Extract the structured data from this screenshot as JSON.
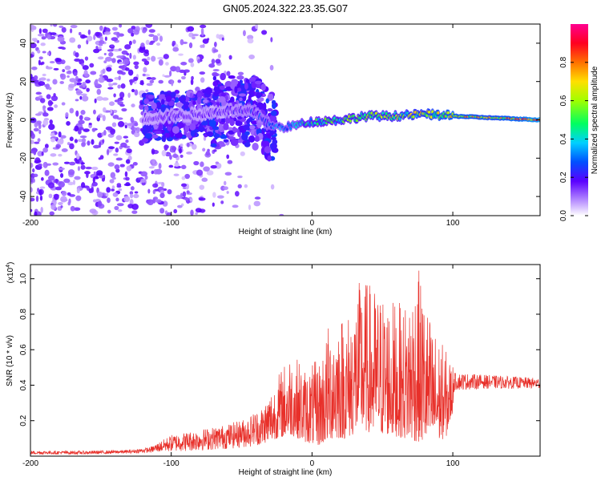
{
  "title": "GN05.2024.322.23.35.G07",
  "colors": {
    "signal": "#e8302a",
    "axis": "#000000"
  },
  "chart_data": [
    {
      "type": "heatmap",
      "title": "GN05.2024.322.23.35.G07",
      "xlabel": "Height of straight line (km)",
      "ylabel": "Frequency (Hz)",
      "xlim": [
        -200,
        162
      ],
      "ylim": [
        -50,
        50
      ],
      "xticks": [
        "-200",
        "-100",
        "0",
        "100"
      ],
      "yticks": [
        "-40",
        "-20",
        "0",
        "20",
        "40"
      ],
      "colorbar": {
        "label": "Normalized spectral amplitude",
        "range": [
          0,
          1
        ],
        "ticks": [
          "0.0",
          "0.2",
          "0.4",
          "0.6",
          "0.8"
        ]
      },
      "ridge": {
        "description_points_x": [
          -120,
          -100,
          -80,
          -60,
          -40,
          -30,
          -20,
          0,
          20,
          40,
          60,
          80,
          100,
          130,
          162
        ],
        "frequency_hz": [
          1,
          2,
          3,
          5,
          4,
          -3,
          -4,
          -1,
          0,
          2,
          2,
          3,
          2,
          1,
          0
        ],
        "amplitude": [
          0.15,
          0.2,
          0.18,
          0.2,
          0.25,
          0.3,
          0.35,
          0.5,
          0.55,
          0.6,
          0.6,
          0.7,
          0.8,
          0.75,
          0.95
        ]
      }
    },
    {
      "type": "line",
      "title": "",
      "xlabel": "Height of straight line (km)",
      "ylabel": "SNR (10 * v/v)",
      "yunit_label": "(x10",
      "yunit_exp": "4",
      "unit_close": ")",
      "xlim": [
        -200,
        162
      ],
      "ylim": [
        0,
        1.08
      ],
      "xticks": [
        "-200",
        "-100",
        "0",
        "100"
      ],
      "yticks": [
        "0.2",
        "0.4",
        "0.6",
        "0.8",
        "1.0"
      ],
      "series": [
        {
          "color": "#e8302a",
          "envelope_x": [
            -200,
            -160,
            -130,
            -115,
            -100,
            -80,
            -60,
            -45,
            -35,
            -25,
            -15,
            -5,
            5,
            15,
            25,
            35,
            45,
            55,
            65,
            75,
            85,
            95,
            100,
            101,
            120,
            140,
            162
          ],
          "envelope_min": [
            0.01,
            0.01,
            0.015,
            0.02,
            0.025,
            0.03,
            0.04,
            0.05,
            0.07,
            0.1,
            0.12,
            0.08,
            0.06,
            0.1,
            0.1,
            0.15,
            0.12,
            0.12,
            0.1,
            0.08,
            0.08,
            0.1,
            0.25,
            0.37,
            0.38,
            0.38,
            0.38
          ],
          "envelope_max": [
            0.03,
            0.03,
            0.035,
            0.05,
            0.12,
            0.15,
            0.18,
            0.22,
            0.3,
            0.45,
            0.6,
            0.5,
            0.55,
            0.84,
            0.8,
            1.02,
            0.95,
            0.9,
            0.85,
            1.08,
            0.75,
            0.6,
            0.52,
            0.47,
            0.46,
            0.45,
            0.44
          ]
        }
      ]
    }
  ]
}
